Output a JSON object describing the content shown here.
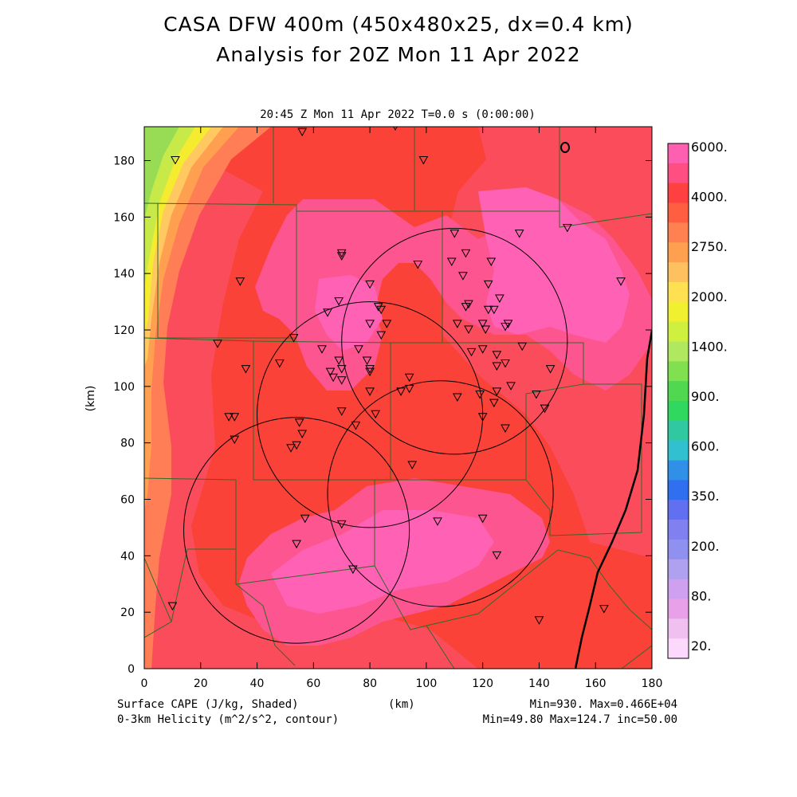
{
  "header": {
    "title_line1": "CASA DFW 400m (450x480x25, dx=0.4 km)",
    "title_line2": "Analysis for 20Z Mon 11 Apr 2022",
    "panel_title": "20:45 Z Mon 11 Apr 2022    T=0.0 s (0:00:00)"
  },
  "footer": {
    "field1": "Surface CAPE (J/kg, Shaded)",
    "field2": "0-3km Helicity (m^2/s^2, contour)",
    "xunits": "(km)",
    "stats1": "Min=930. Max=0.466E+04",
    "stats2": "Min=49.80 Max=124.7 inc=50.00"
  },
  "chart_data": {
    "type": "heatmap",
    "title": "CASA DFW 400m (450x480x25, dx=0.4 km)",
    "subtitle": "Analysis for 20Z Mon 11 Apr 2022",
    "xlabel": "(km)",
    "ylabel": "(km)",
    "xlim": [
      0,
      180
    ],
    "ylim": [
      0,
      192
    ],
    "xticks": [
      0,
      20,
      40,
      60,
      80,
      100,
      120,
      140,
      160,
      180
    ],
    "yticks": [
      0,
      20,
      40,
      60,
      80,
      100,
      120,
      140,
      160,
      180
    ],
    "colorbar": {
      "labels": [
        "6000.",
        "4000.",
        "2750.",
        "2000.",
        "1400.",
        "900.",
        "600.",
        "350.",
        "200.",
        "80.",
        "20."
      ],
      "colors": [
        "#ff5fb0",
        "#ff4f82",
        "#ff4040",
        "#ff5e40",
        "#ff8050",
        "#ffa050",
        "#ffc060",
        "#ffe050",
        "#f0f030",
        "#d0f040",
        "#b0e860",
        "#80e050",
        "#50d850",
        "#30d860",
        "#30c8a0",
        "#30c0d0",
        "#3090e8",
        "#3070f0",
        "#6070f0",
        "#8080f0",
        "#9090f0",
        "#b0a0f0",
        "#d0a0f0",
        "#e8a0e8",
        "#f0c0f0",
        "#fcd8fc"
      ]
    },
    "cape_range": {
      "min": 930,
      "max": 4660
    },
    "helicity_contours": {
      "min": 49.8,
      "max": 124.7,
      "inc": 50
    },
    "radar_circles": [
      {
        "cx": 110,
        "cy": 116,
        "r": 40
      },
      {
        "cx": 80,
        "cy": 90,
        "r": 40
      },
      {
        "cx": 105,
        "cy": 62,
        "r": 40
      },
      {
        "cx": 54,
        "cy": 49,
        "r": 40
      }
    ],
    "stations": [
      [
        89,
        192
      ],
      [
        56,
        190
      ],
      [
        11,
        180
      ],
      [
        99,
        180
      ],
      [
        150,
        156
      ],
      [
        110,
        154
      ],
      [
        133,
        154
      ],
      [
        70,
        147
      ],
      [
        70,
        146
      ],
      [
        114,
        147
      ],
      [
        109,
        144
      ],
      [
        123,
        144
      ],
      [
        97,
        143
      ],
      [
        113,
        139
      ],
      [
        34,
        137
      ],
      [
        169,
        137
      ],
      [
        80,
        136
      ],
      [
        122,
        136
      ],
      [
        126,
        131
      ],
      [
        69,
        130
      ],
      [
        83,
        128
      ],
      [
        84,
        127
      ],
      [
        115,
        129
      ],
      [
        114,
        128
      ],
      [
        124,
        127
      ],
      [
        122,
        127
      ],
      [
        65,
        126
      ],
      [
        86,
        122
      ],
      [
        80,
        122
      ],
      [
        111,
        122
      ],
      [
        120,
        122
      ],
      [
        129,
        122
      ],
      [
        128,
        121
      ],
      [
        115,
        120
      ],
      [
        121,
        120
      ],
      [
        84,
        118
      ],
      [
        53,
        117
      ],
      [
        26,
        115
      ],
      [
        134,
        114
      ],
      [
        120,
        113
      ],
      [
        116,
        112
      ],
      [
        63,
        113
      ],
      [
        76,
        113
      ],
      [
        125,
        111
      ],
      [
        79,
        109
      ],
      [
        69,
        109
      ],
      [
        128,
        108
      ],
      [
        125,
        107
      ],
      [
        36,
        106
      ],
      [
        48,
        108
      ],
      [
        80,
        106
      ],
      [
        80,
        105
      ],
      [
        70,
        106
      ],
      [
        66,
        105
      ],
      [
        67,
        103
      ],
      [
        144,
        106
      ],
      [
        94,
        103
      ],
      [
        70,
        102
      ],
      [
        94,
        99
      ],
      [
        130,
        100
      ],
      [
        91,
        98
      ],
      [
        80,
        98
      ],
      [
        125,
        98
      ],
      [
        139,
        97
      ],
      [
        119,
        97
      ],
      [
        111,
        96
      ],
      [
        124,
        94
      ],
      [
        30,
        89
      ],
      [
        32,
        89
      ],
      [
        70,
        91
      ],
      [
        82,
        90
      ],
      [
        120,
        89
      ],
      [
        142,
        92
      ],
      [
        55,
        87
      ],
      [
        75,
        86
      ],
      [
        128,
        85
      ],
      [
        56,
        83
      ],
      [
        32,
        81
      ],
      [
        54,
        79
      ],
      [
        52,
        78
      ],
      [
        95,
        72
      ],
      [
        57,
        53
      ],
      [
        70,
        51
      ],
      [
        120,
        53
      ],
      [
        104,
        52
      ],
      [
        54,
        44
      ],
      [
        125,
        40
      ],
      [
        74,
        35
      ],
      [
        10,
        22
      ],
      [
        140,
        17
      ],
      [
        163,
        21
      ]
    ]
  }
}
